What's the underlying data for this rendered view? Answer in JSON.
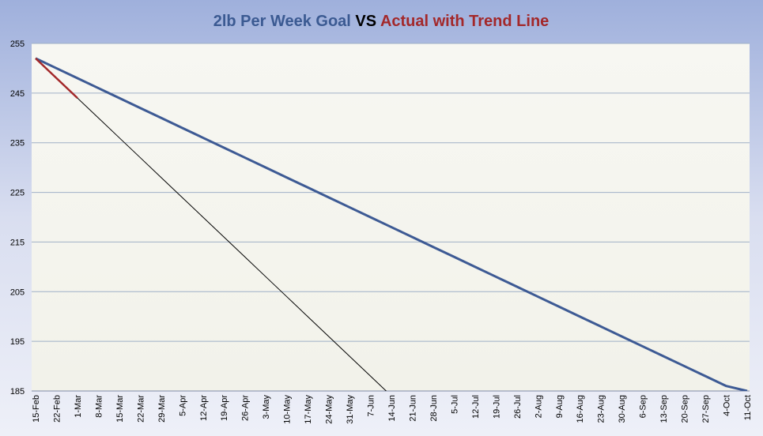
{
  "chart_data": {
    "type": "line",
    "title": {
      "goal": "2lb Per Week Goal",
      "vs": "VS",
      "actual": "Actual with Trend Line"
    },
    "title_colors": {
      "goal": "#3b5a92",
      "vs": "#000000",
      "actual": "#a3282a"
    },
    "categories": [
      "15-Feb",
      "22-Feb",
      "1-Mar",
      "8-Mar",
      "15-Mar",
      "22-Mar",
      "29-Mar",
      "5-Apr",
      "12-Apr",
      "19-Apr",
      "26-Apr",
      "3-May",
      "10-May",
      "17-May",
      "24-May",
      "31-May",
      "7-Jun",
      "14-Jun",
      "21-Jun",
      "28-Jun",
      "5-Jul",
      "12-Jul",
      "19-Jul",
      "26-Jul",
      "2-Aug",
      "9-Aug",
      "16-Aug",
      "23-Aug",
      "30-Aug",
      "6-Sep",
      "13-Sep",
      "20-Sep",
      "27-Sep",
      "4-Oct",
      "11-Oct"
    ],
    "series": [
      {
        "color": "#3d5a94",
        "width": 3,
        "values": [
          252,
          250,
          248,
          246,
          244,
          242,
          240,
          238,
          236,
          234,
          232,
          230,
          228,
          226,
          224,
          222,
          220,
          218,
          216,
          214,
          212,
          210,
          208,
          206,
          204,
          202,
          200,
          198,
          196,
          194,
          192,
          190,
          188,
          186,
          185
        ]
      },
      {
        "color": "#000000",
        "width": 1,
        "values": [
          252,
          248,
          244,
          240,
          236,
          232,
          228,
          224,
          220,
          216,
          212,
          208,
          204,
          200,
          196,
          192,
          188,
          184,
          null,
          null,
          null,
          null,
          null,
          null,
          null,
          null,
          null,
          null,
          null,
          null,
          null,
          null,
          null,
          null,
          null
        ]
      },
      {
        "color": "#a3282a",
        "width": 2.5,
        "values": [
          252,
          248,
          244,
          null,
          null,
          null,
          null,
          null,
          null,
          null,
          null,
          null,
          null,
          null,
          null,
          null,
          null,
          null,
          null,
          null,
          null,
          null,
          null,
          null,
          null,
          null,
          null,
          null,
          null,
          null,
          null,
          null,
          null,
          null,
          null
        ]
      }
    ],
    "ylim": [
      185,
      255
    ],
    "yticks": [
      185,
      195,
      205,
      215,
      225,
      235,
      245,
      255
    ],
    "grid": true
  }
}
